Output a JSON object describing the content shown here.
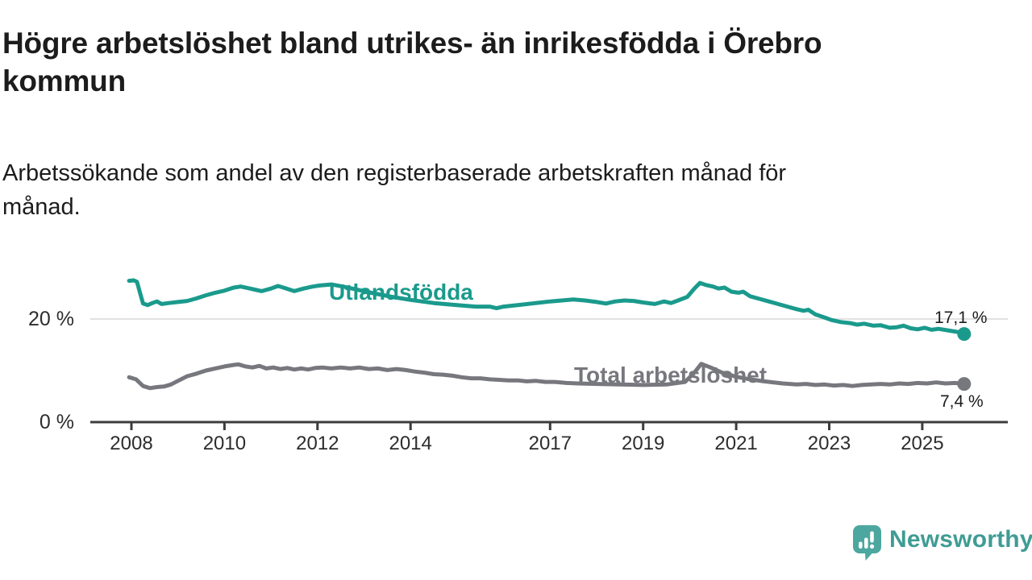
{
  "header": {
    "title": "Högre arbetslöshet bland utrikes- än inrikesfödda i Örebro\nkommun",
    "subtitle": "Arbetssökande som andel av den registerbaserade arbetskraften månad för\nmånad."
  },
  "chart_data": {
    "type": "line",
    "title": "Högre arbetslöshet bland utrikes- än inrikesfödda i Örebro kommun",
    "subtitle": "Arbetssökande som andel av den registerbaserade arbetskraften månad för månad.",
    "grid": "horizontal-only",
    "x_axis": {
      "unit": "year",
      "range": [
        2007.9,
        2026.0
      ],
      "ticks": [
        2008,
        2010,
        2012,
        2014,
        2017,
        2019,
        2021,
        2023,
        2025
      ]
    },
    "y_axis": {
      "unit": "%",
      "range": [
        0,
        30
      ],
      "ticks": [
        {
          "value": 0,
          "label": "0 %"
        },
        {
          "value": 20,
          "label": "20 %"
        }
      ],
      "gridline_values": [
        20
      ]
    },
    "series": [
      {
        "name": "Utlandsfödda",
        "color": "#1a9a8c",
        "end_label": "17,1 %",
        "last_value": "17,1 %",
        "points": [
          [
            2007.95,
            27.4
          ],
          [
            2008.05,
            27.5
          ],
          [
            2008.12,
            27.2
          ],
          [
            2008.25,
            23.0
          ],
          [
            2008.35,
            22.7
          ],
          [
            2008.45,
            23.1
          ],
          [
            2008.55,
            23.4
          ],
          [
            2008.65,
            22.9
          ],
          [
            2008.8,
            23.1
          ],
          [
            2009.0,
            23.3
          ],
          [
            2009.2,
            23.5
          ],
          [
            2009.4,
            24.0
          ],
          [
            2009.6,
            24.6
          ],
          [
            2009.8,
            25.1
          ],
          [
            2010.0,
            25.5
          ],
          [
            2010.2,
            26.1
          ],
          [
            2010.35,
            26.3
          ],
          [
            2010.5,
            26.0
          ],
          [
            2010.65,
            25.7
          ],
          [
            2010.8,
            25.4
          ],
          [
            2011.0,
            25.9
          ],
          [
            2011.15,
            26.4
          ],
          [
            2011.3,
            26.0
          ],
          [
            2011.5,
            25.4
          ],
          [
            2011.7,
            25.9
          ],
          [
            2011.9,
            26.3
          ],
          [
            2012.05,
            26.5
          ],
          [
            2012.3,
            26.7
          ],
          [
            2012.6,
            26.2
          ],
          [
            2012.9,
            25.6
          ],
          [
            2013.2,
            25.0
          ],
          [
            2013.6,
            24.3
          ],
          [
            2014.0,
            23.7
          ],
          [
            2014.5,
            23.1
          ],
          [
            2015.0,
            22.7
          ],
          [
            2015.4,
            22.4
          ],
          [
            2015.7,
            22.4
          ],
          [
            2015.85,
            22.1
          ],
          [
            2016.0,
            22.4
          ],
          [
            2016.2,
            22.6
          ],
          [
            2016.4,
            22.8
          ],
          [
            2016.6,
            23.0
          ],
          [
            2016.8,
            23.2
          ],
          [
            2017.0,
            23.4
          ],
          [
            2017.25,
            23.6
          ],
          [
            2017.5,
            23.8
          ],
          [
            2017.75,
            23.6
          ],
          [
            2018.0,
            23.3
          ],
          [
            2018.2,
            23.0
          ],
          [
            2018.4,
            23.4
          ],
          [
            2018.6,
            23.6
          ],
          [
            2018.8,
            23.5
          ],
          [
            2019.0,
            23.2
          ],
          [
            2019.25,
            22.9
          ],
          [
            2019.45,
            23.4
          ],
          [
            2019.6,
            23.1
          ],
          [
            2019.75,
            23.6
          ],
          [
            2019.95,
            24.3
          ],
          [
            2020.1,
            25.9
          ],
          [
            2020.22,
            27.0
          ],
          [
            2020.35,
            26.6
          ],
          [
            2020.5,
            26.3
          ],
          [
            2020.62,
            25.9
          ],
          [
            2020.75,
            26.1
          ],
          [
            2020.9,
            25.3
          ],
          [
            2021.05,
            25.1
          ],
          [
            2021.15,
            25.3
          ],
          [
            2021.3,
            24.4
          ],
          [
            2021.5,
            23.9
          ],
          [
            2021.7,
            23.4
          ],
          [
            2021.9,
            22.9
          ],
          [
            2022.1,
            22.4
          ],
          [
            2022.3,
            21.9
          ],
          [
            2022.45,
            21.6
          ],
          [
            2022.55,
            21.8
          ],
          [
            2022.7,
            20.9
          ],
          [
            2022.9,
            20.3
          ],
          [
            2023.05,
            19.8
          ],
          [
            2023.25,
            19.4
          ],
          [
            2023.45,
            19.2
          ],
          [
            2023.6,
            18.9
          ],
          [
            2023.75,
            19.1
          ],
          [
            2023.95,
            18.7
          ],
          [
            2024.1,
            18.8
          ],
          [
            2024.3,
            18.3
          ],
          [
            2024.45,
            18.4
          ],
          [
            2024.6,
            18.7
          ],
          [
            2024.75,
            18.2
          ],
          [
            2024.9,
            18.0
          ],
          [
            2025.05,
            18.3
          ],
          [
            2025.2,
            17.9
          ],
          [
            2025.35,
            18.1
          ],
          [
            2025.55,
            17.8
          ],
          [
            2025.75,
            17.5
          ],
          [
            2025.9,
            17.1
          ]
        ]
      },
      {
        "name": "Total arbetslöshet",
        "color": "#77777e",
        "end_label": "7,4 %",
        "last_value": "7,4 %",
        "points": [
          [
            2007.95,
            8.7
          ],
          [
            2008.1,
            8.3
          ],
          [
            2008.25,
            7.0
          ],
          [
            2008.4,
            6.6
          ],
          [
            2008.55,
            6.8
          ],
          [
            2008.7,
            6.9
          ],
          [
            2008.85,
            7.3
          ],
          [
            2009.0,
            8.0
          ],
          [
            2009.2,
            8.9
          ],
          [
            2009.4,
            9.4
          ],
          [
            2009.6,
            10.0
          ],
          [
            2009.8,
            10.4
          ],
          [
            2010.0,
            10.8
          ],
          [
            2010.2,
            11.1
          ],
          [
            2010.3,
            11.2
          ],
          [
            2010.45,
            10.8
          ],
          [
            2010.6,
            10.6
          ],
          [
            2010.75,
            10.9
          ],
          [
            2010.9,
            10.4
          ],
          [
            2011.05,
            10.6
          ],
          [
            2011.2,
            10.3
          ],
          [
            2011.35,
            10.5
          ],
          [
            2011.5,
            10.2
          ],
          [
            2011.65,
            10.4
          ],
          [
            2011.8,
            10.2
          ],
          [
            2011.95,
            10.5
          ],
          [
            2012.1,
            10.6
          ],
          [
            2012.3,
            10.4
          ],
          [
            2012.5,
            10.6
          ],
          [
            2012.7,
            10.4
          ],
          [
            2012.9,
            10.6
          ],
          [
            2013.1,
            10.3
          ],
          [
            2013.3,
            10.4
          ],
          [
            2013.5,
            10.1
          ],
          [
            2013.7,
            10.3
          ],
          [
            2013.9,
            10.1
          ],
          [
            2014.1,
            9.8
          ],
          [
            2014.3,
            9.6
          ],
          [
            2014.5,
            9.3
          ],
          [
            2014.7,
            9.2
          ],
          [
            2014.9,
            9.0
          ],
          [
            2015.1,
            8.7
          ],
          [
            2015.3,
            8.5
          ],
          [
            2015.5,
            8.5
          ],
          [
            2015.7,
            8.3
          ],
          [
            2015.9,
            8.2
          ],
          [
            2016.1,
            8.1
          ],
          [
            2016.3,
            8.1
          ],
          [
            2016.5,
            7.9
          ],
          [
            2016.7,
            8.0
          ],
          [
            2016.9,
            7.8
          ],
          [
            2017.1,
            7.8
          ],
          [
            2017.35,
            7.6
          ],
          [
            2017.6,
            7.5
          ],
          [
            2018.0,
            7.4
          ],
          [
            2018.5,
            7.3
          ],
          [
            2019.0,
            7.2
          ],
          [
            2019.5,
            7.3
          ],
          [
            2019.9,
            7.8
          ],
          [
            2020.1,
            9.6
          ],
          [
            2020.25,
            11.3
          ],
          [
            2020.45,
            10.6
          ],
          [
            2020.7,
            9.6
          ],
          [
            2021.0,
            8.8
          ],
          [
            2021.3,
            8.3
          ],
          [
            2021.6,
            7.9
          ],
          [
            2022.0,
            7.5
          ],
          [
            2022.3,
            7.3
          ],
          [
            2022.5,
            7.4
          ],
          [
            2022.7,
            7.2
          ],
          [
            2022.9,
            7.3
          ],
          [
            2023.1,
            7.1
          ],
          [
            2023.3,
            7.2
          ],
          [
            2023.5,
            7.0
          ],
          [
            2023.7,
            7.2
          ],
          [
            2023.9,
            7.3
          ],
          [
            2024.1,
            7.4
          ],
          [
            2024.3,
            7.3
          ],
          [
            2024.5,
            7.5
          ],
          [
            2024.7,
            7.4
          ],
          [
            2024.9,
            7.6
          ],
          [
            2025.1,
            7.5
          ],
          [
            2025.3,
            7.7
          ],
          [
            2025.5,
            7.5
          ],
          [
            2025.7,
            7.6
          ],
          [
            2025.9,
            7.4
          ]
        ]
      }
    ],
    "colors": {
      "axis": "#3c3c3c",
      "gridline": "#e2e2e2",
      "tick_label": "#2d2d2d",
      "value_label": "#1c1c1c"
    }
  },
  "branding": {
    "logo_text": "Newsworthy",
    "logo_color": "#3f9c94",
    "icon_color": "#4ca7a0"
  }
}
